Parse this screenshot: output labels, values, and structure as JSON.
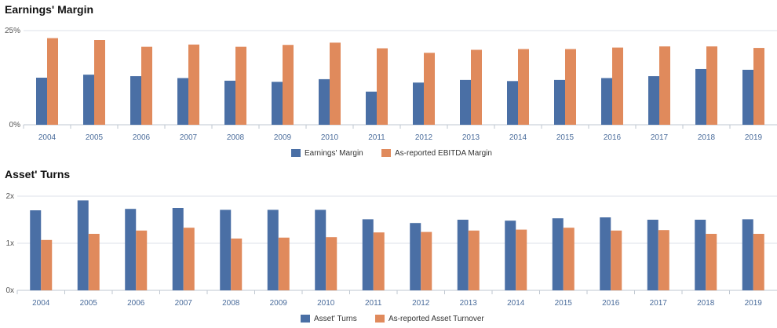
{
  "charts": {
    "margin_title": "Earnings' Margin",
    "turns_title": "Asset' Turns"
  },
  "chart_data": [
    {
      "type": "bar",
      "title": "Earnings' Margin",
      "categories": [
        "2004",
        "2005",
        "2006",
        "2007",
        "2008",
        "2009",
        "2010",
        "2011",
        "2012",
        "2013",
        "2014",
        "2015",
        "2016",
        "2017",
        "2018",
        "2019"
      ],
      "yticks": [
        "0%",
        "25%"
      ],
      "ylim": [
        0,
        25
      ],
      "grid": true,
      "legend_position": "bottom-center",
      "series": [
        {
          "name": "Earnings' Margin",
          "color": "#4a6fa5",
          "values": [
            12.5,
            13.3,
            12.9,
            12.4,
            11.7,
            11.4,
            12.1,
            8.8,
            11.2,
            11.9,
            11.6,
            11.9,
            12.4,
            12.9,
            14.8,
            14.6
          ]
        },
        {
          "name": "As-reported EBITDA Margin",
          "color": "#e08a5c",
          "values": [
            23.0,
            22.5,
            20.7,
            21.3,
            20.7,
            21.2,
            21.8,
            20.3,
            19.1,
            19.9,
            20.1,
            20.1,
            20.5,
            20.8,
            20.8,
            20.4
          ]
        }
      ]
    },
    {
      "type": "bar",
      "title": "Asset' Turns",
      "categories": [
        "2004",
        "2005",
        "2006",
        "2007",
        "2008",
        "2009",
        "2010",
        "2011",
        "2012",
        "2013",
        "2014",
        "2015",
        "2016",
        "2017",
        "2018",
        "2019"
      ],
      "yticks": [
        "0x",
        "1x",
        "2x"
      ],
      "ylim": [
        0,
        2
      ],
      "grid": true,
      "legend_position": "bottom-center",
      "series": [
        {
          "name": "Asset' Turns",
          "color": "#4a6fa5",
          "values": [
            1.7,
            1.91,
            1.73,
            1.75,
            1.71,
            1.71,
            1.71,
            1.51,
            1.43,
            1.5,
            1.48,
            1.53,
            1.55,
            1.5,
            1.5,
            1.51
          ]
        },
        {
          "name": "As-reported Asset Turnover",
          "color": "#e08a5c",
          "values": [
            1.07,
            1.2,
            1.27,
            1.33,
            1.1,
            1.12,
            1.13,
            1.23,
            1.24,
            1.27,
            1.29,
            1.33,
            1.27,
            1.28,
            1.2,
            1.2
          ]
        }
      ]
    }
  ]
}
